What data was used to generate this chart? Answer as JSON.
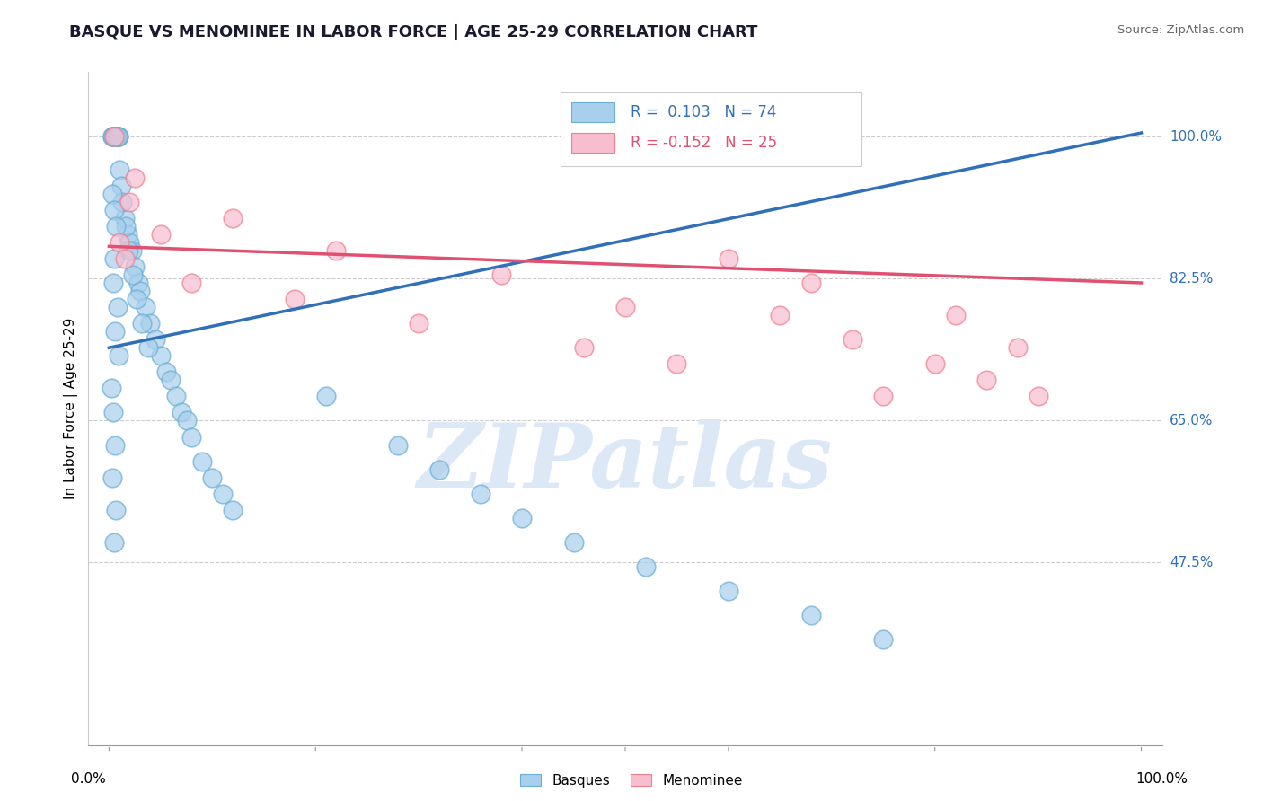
{
  "title": "BASQUE VS MENOMINEE IN LABOR FORCE | AGE 25-29 CORRELATION CHART",
  "source": "Source: ZipAtlas.com",
  "ylabel": "In Labor Force | Age 25-29",
  "ytick_vals": [
    0.475,
    0.65,
    0.825,
    1.0
  ],
  "ytick_labels": [
    "47.5%",
    "65.0%",
    "82.5%",
    "100.0%"
  ],
  "xlim": [
    -0.02,
    1.02
  ],
  "ylim": [
    0.25,
    1.08
  ],
  "xplot_min": 0.0,
  "xplot_max": 1.0,
  "basque_R": 0.103,
  "basque_N": 74,
  "menominee_R": -0.152,
  "menominee_N": 25,
  "basque_color": "#a8cfec",
  "basque_edge_color": "#6baed6",
  "menominee_color": "#f9bdd0",
  "menominee_edge_color": "#f08090",
  "basque_line_color": "#3070b8",
  "menominee_line_color": "#e05070",
  "grid_color": "#cccccc",
  "watermark_text": "ZIPatlas",
  "watermark_color": "#dce8f5",
  "legend_label_basque": "Basques",
  "legend_label_menominee": "Menominee",
  "blue_line_x0": 0.0,
  "blue_line_y0": 0.74,
  "blue_line_x1": 1.0,
  "blue_line_y1": 1.005,
  "pink_line_x0": 0.0,
  "pink_line_y0": 0.865,
  "pink_line_x1": 1.0,
  "pink_line_y1": 0.82,
  "basque_x": [
    0.003,
    0.005,
    0.007,
    0.004,
    0.006,
    0.008,
    0.005,
    0.009,
    0.006,
    0.004,
    0.007,
    0.005,
    0.008,
    0.006,
    0.003,
    0.009,
    0.007,
    0.005,
    0.006,
    0.008,
    0.01,
    0.012,
    0.015,
    0.018,
    0.02,
    0.022,
    0.025,
    0.028,
    0.03,
    0.035,
    0.04,
    0.045,
    0.05,
    0.055,
    0.06,
    0.065,
    0.07,
    0.075,
    0.08,
    0.09,
    0.1,
    0.11,
    0.12,
    0.013,
    0.016,
    0.019,
    0.023,
    0.027,
    0.032,
    0.038,
    0.003,
    0.005,
    0.007,
    0.005,
    0.004,
    0.008,
    0.006,
    0.009,
    0.002,
    0.004,
    0.006,
    0.003,
    0.007,
    0.005,
    0.21,
    0.28,
    0.32,
    0.36,
    0.4,
    0.45,
    0.52,
    0.6,
    0.68,
    0.75
  ],
  "basque_y": [
    1.0,
    1.0,
    1.0,
    1.0,
    1.0,
    1.0,
    1.0,
    1.0,
    1.0,
    1.0,
    1.0,
    1.0,
    1.0,
    1.0,
    1.0,
    1.0,
    1.0,
    1.0,
    1.0,
    1.0,
    0.96,
    0.94,
    0.9,
    0.88,
    0.87,
    0.86,
    0.84,
    0.82,
    0.81,
    0.79,
    0.77,
    0.75,
    0.73,
    0.71,
    0.7,
    0.68,
    0.66,
    0.65,
    0.63,
    0.6,
    0.58,
    0.56,
    0.54,
    0.92,
    0.89,
    0.86,
    0.83,
    0.8,
    0.77,
    0.74,
    0.93,
    0.91,
    0.89,
    0.85,
    0.82,
    0.79,
    0.76,
    0.73,
    0.69,
    0.66,
    0.62,
    0.58,
    0.54,
    0.5,
    0.68,
    0.62,
    0.59,
    0.56,
    0.53,
    0.5,
    0.47,
    0.44,
    0.41,
    0.38
  ],
  "menominee_x": [
    0.01,
    0.005,
    0.02,
    0.015,
    0.025,
    0.05,
    0.08,
    0.12,
    0.18,
    0.22,
    0.3,
    0.38,
    0.46,
    0.5,
    0.55,
    0.6,
    0.65,
    0.68,
    0.72,
    0.75,
    0.8,
    0.82,
    0.85,
    0.88,
    0.9
  ],
  "menominee_y": [
    0.87,
    1.0,
    0.92,
    0.85,
    0.95,
    0.88,
    0.82,
    0.9,
    0.8,
    0.86,
    0.77,
    0.83,
    0.74,
    0.79,
    0.72,
    0.85,
    0.78,
    0.82,
    0.75,
    0.68,
    0.72,
    0.78,
    0.7,
    0.74,
    0.68
  ]
}
